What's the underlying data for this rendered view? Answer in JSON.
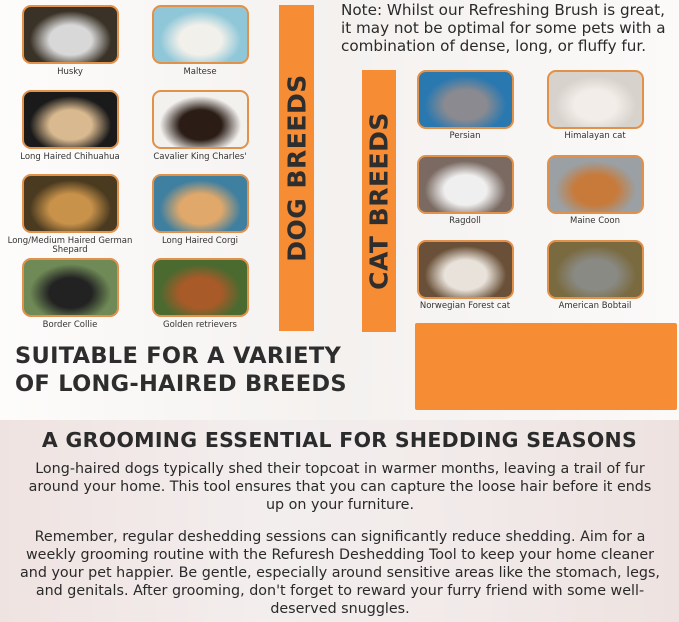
{
  "note": "Note: Whilst our Refreshing Brush is great, it may not be optimal for some pets with a combination of dense, long, or fluffy fur.",
  "dog_section": {
    "title": "DOG BREEDS",
    "breeds": [
      {
        "label": "Husky",
        "colors": [
          "#3a3226",
          "#d8d8d8"
        ]
      },
      {
        "label": "Maltese",
        "colors": [
          "#8fc7d8",
          "#f2f0ea"
        ]
      },
      {
        "label": "Long Haired Chihuahua",
        "colors": [
          "#1a1a1a",
          "#d9b98f"
        ]
      },
      {
        "label": "Cavalier King Charles'",
        "colors": [
          "#f3f1ee",
          "#2b1d16"
        ]
      },
      {
        "label": "Long/Medium Haired German Shepard",
        "colors": [
          "#4a3a20",
          "#c8924a"
        ]
      },
      {
        "label": "Long Haired Corgi",
        "colors": [
          "#3f7fa0",
          "#e0a86a"
        ]
      },
      {
        "label": "Border Collie",
        "colors": [
          "#6f8a56",
          "#222222"
        ]
      },
      {
        "label": "Golden retrievers",
        "colors": [
          "#4a6a30",
          "#a85a28"
        ]
      }
    ]
  },
  "cat_section": {
    "title": "CAT BREEDS",
    "breeds": [
      {
        "label": "Persian",
        "colors": [
          "#2a78b0",
          "#8a8a90"
        ]
      },
      {
        "label": "Himalayan cat",
        "colors": [
          "#d8d2cc",
          "#f2ede8"
        ]
      },
      {
        "label": "Ragdoll",
        "colors": [
          "#7a6a62",
          "#efefef"
        ]
      },
      {
        "label": "Maine Coon",
        "colors": [
          "#9aa0a4",
          "#c87a3a"
        ]
      },
      {
        "label": "Norwegian Forest cat",
        "colors": [
          "#6a5038",
          "#e8e2da"
        ]
      },
      {
        "label": "American Bobtail",
        "colors": [
          "#7a6a40",
          "#8a8a84"
        ]
      }
    ]
  },
  "headline": [
    "SUITABLE FOR A VARIETY",
    "OF LONG-HAIRED BREEDS"
  ],
  "bottom": {
    "heading": "A GROOMING ESSENTIAL FOR SHEDDING SEASONS",
    "paragraph1": "Long-haired dogs typically shed their topcoat in warmer months, leaving a trail of fur around your home. This tool ensures that you can capture the loose hair before it ends up on your furniture.",
    "paragraph2": "Remember, regular deshedding sessions can significantly reduce shedding. Aim for a weekly grooming routine with the Refuresh Deshedding Tool to keep your home cleaner and your pet happier. Be gentle, especially around sensitive areas like the stomach, legs, and genitals. After grooming, don't forget to reward your furry friend with some well-deserved snuggles."
  },
  "accent_color": "#f68c34"
}
